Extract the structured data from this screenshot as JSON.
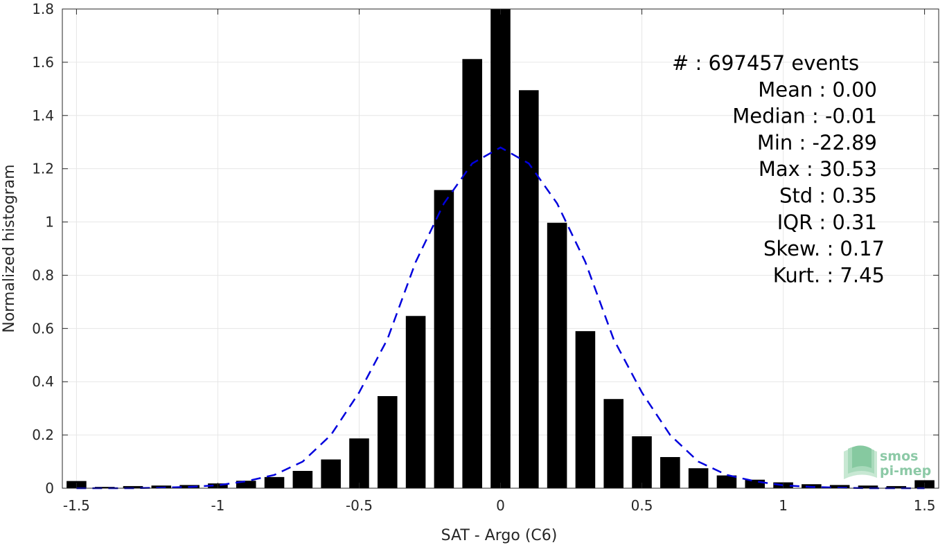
{
  "chart_data": {
    "type": "bar",
    "xlabel": "SAT - Argo (C6)",
    "ylabel": "Normalized histogram",
    "xlim": [
      -1.55,
      1.55
    ],
    "ylim": [
      0,
      1.8
    ],
    "xticks": [
      -1.5,
      -1,
      -0.5,
      0,
      0.5,
      1,
      1.5
    ],
    "xtick_labels": [
      "-1.5",
      "-1",
      "-0.5",
      "0",
      "0.5",
      "1",
      "1.5"
    ],
    "yticks": [
      0,
      0.2,
      0.4,
      0.6,
      0.8,
      1,
      1.2,
      1.4,
      1.6,
      1.8
    ],
    "ytick_labels": [
      "0",
      "0.2",
      "0.4",
      "0.6",
      "0.8",
      "1",
      "1.2",
      "1.4",
      "1.6",
      "1.8"
    ],
    "grid": true,
    "bar_width": 0.07,
    "bar_color": "#000000",
    "bars": {
      "x": [
        -1.5,
        -1.4,
        -1.3,
        -1.2,
        -1.1,
        -1.0,
        -0.9,
        -0.8,
        -0.7,
        -0.6,
        -0.5,
        -0.4,
        -0.3,
        -0.2,
        -0.1,
        0.0,
        0.1,
        0.2,
        0.3,
        0.4,
        0.5,
        0.6,
        0.7,
        0.8,
        0.9,
        1.0,
        1.1,
        1.2,
        1.3,
        1.4,
        1.5
      ],
      "values": [
        0.027,
        0.005,
        0.008,
        0.01,
        0.012,
        0.018,
        0.028,
        0.042,
        0.065,
        0.108,
        0.187,
        0.346,
        0.647,
        1.12,
        1.612,
        1.8,
        1.495,
        0.997,
        0.59,
        0.335,
        0.195,
        0.117,
        0.075,
        0.048,
        0.032,
        0.022,
        0.015,
        0.012,
        0.01,
        0.008,
        0.03
      ]
    },
    "fit_curve": {
      "name": "Gaussian fit",
      "style": "dashed",
      "color": "#0000dd",
      "x": [
        -1.5,
        -1.4,
        -1.3,
        -1.2,
        -1.1,
        -1.0,
        -0.9,
        -0.8,
        -0.7,
        -0.6,
        -0.5,
        -0.4,
        -0.3,
        -0.2,
        -0.1,
        0.0,
        0.1,
        0.2,
        0.3,
        0.4,
        0.5,
        0.6,
        0.7,
        0.8,
        0.9,
        1.0,
        1.1,
        1.2,
        1.3,
        1.4,
        1.5
      ],
      "y": [
        0.0,
        0.0,
        0.0,
        0.002,
        0.005,
        0.011,
        0.026,
        0.05,
        0.1,
        0.2,
        0.36,
        0.56,
        0.85,
        1.07,
        1.22,
        1.28,
        1.22,
        1.07,
        0.85,
        0.56,
        0.36,
        0.2,
        0.1,
        0.05,
        0.026,
        0.011,
        0.005,
        0.002,
        0.0,
        0.0,
        0.0
      ]
    },
    "stats": [
      {
        "label": "#  :",
        "value": "697457 events"
      },
      {
        "label": "Mean :",
        "value": "0.00"
      },
      {
        "label": "Median :",
        "value": "-0.01"
      },
      {
        "label": "Min :",
        "value": "-22.89"
      },
      {
        "label": "Max :",
        "value": "30.53"
      },
      {
        "label": "Std :",
        "value": "0.35"
      },
      {
        "label": "IQR :",
        "value": "0.31"
      },
      {
        "label": "Skew. :",
        "value": "0.17"
      },
      {
        "label": "Kurt. :",
        "value": "7.45"
      }
    ]
  },
  "logo": {
    "line1": "smos",
    "line2": "pi-mep",
    "icon": "wave-layers-icon",
    "color": "#8cc9a6"
  }
}
